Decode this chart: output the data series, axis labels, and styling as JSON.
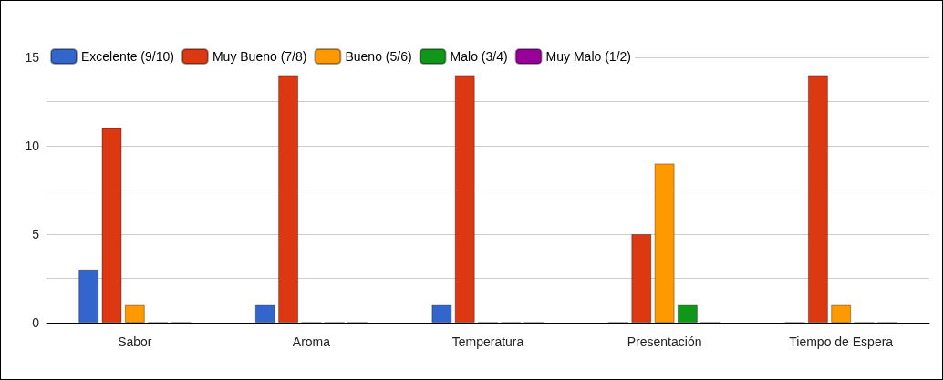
{
  "chart_data": {
    "type": "bar",
    "categories": [
      "Sabor",
      "Aroma",
      "Temperatura",
      "Presentación",
      "Tiempo de Espera"
    ],
    "series": [
      {
        "name": "Excelente (9/10)",
        "color": "#3366cc",
        "values": [
          3,
          1,
          1,
          0,
          0
        ]
      },
      {
        "name": "Muy Bueno (7/8)",
        "color": "#dc3912",
        "values": [
          11,
          14,
          14,
          5,
          14
        ]
      },
      {
        "name": "Bueno (5/6)",
        "color": "#ff9900",
        "values": [
          1,
          0,
          0,
          9,
          1
        ]
      },
      {
        "name": "Malo (3/4)",
        "color": "#109618",
        "values": [
          0,
          0,
          0,
          1,
          0
        ]
      },
      {
        "name": "Muy Malo (1/2)",
        "color": "#990099",
        "values": [
          0,
          0,
          0,
          0,
          0
        ]
      }
    ],
    "ylim": [
      0,
      15
    ],
    "yticks": [
      0,
      {
        "value": 2.5,
        "label": null
      },
      5,
      {
        "value": 7.5,
        "label": null
      },
      10,
      {
        "value": 12.5,
        "label": null
      },
      15
    ],
    "grid": true,
    "legend": "top left"
  }
}
